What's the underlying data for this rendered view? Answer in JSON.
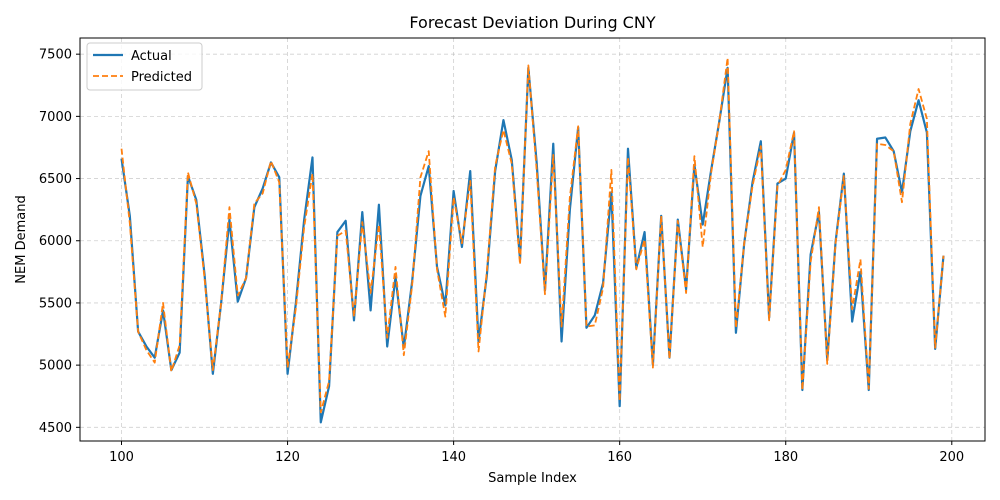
{
  "chart_data": {
    "type": "line",
    "title": "Forecast Deviation During CNY",
    "xlabel": "Sample Index",
    "ylabel": "NEM Demand",
    "xlim": [
      95,
      204
    ],
    "ylim": [
      4390,
      7630
    ],
    "xticks": [
      100,
      120,
      140,
      160,
      180,
      200
    ],
    "yticks": [
      4500,
      5000,
      5500,
      6000,
      6500,
      7000,
      7500
    ],
    "grid": true,
    "legend_position": "top-left",
    "x_start": 100,
    "series": [
      {
        "name": "Actual",
        "color": "#1f77b4",
        "style": "solid",
        "values": [
          6660,
          6200,
          5270,
          5150,
          5060,
          5440,
          4960,
          5100,
          6520,
          6330,
          5730,
          4930,
          5500,
          6170,
          5510,
          5700,
          6270,
          6420,
          6630,
          6510,
          4930,
          5500,
          6170,
          6670,
          4540,
          4830,
          6070,
          6160,
          5360,
          6230,
          5440,
          6290,
          5150,
          5710,
          5140,
          5670,
          6360,
          6600,
          5790,
          5480,
          6400,
          5950,
          6560,
          5190,
          5720,
          6560,
          6970,
          6650,
          5850,
          7390,
          6630,
          5600,
          6780,
          5190,
          6250,
          6910,
          5300,
          5400,
          5660,
          6390,
          4670,
          6740,
          5780,
          6070,
          5000,
          6200,
          5060,
          6170,
          5610,
          6610,
          6130,
          6560,
          6960,
          7390,
          5260,
          5980,
          6470,
          6800,
          5380,
          6460,
          6500,
          6870,
          4800,
          5890,
          6230,
          5040,
          5990,
          6540,
          5350,
          5750,
          4800,
          6820,
          6830,
          6720,
          6390,
          6880,
          7130,
          6870,
          5130,
          5880
        ]
      },
      {
        "name": "Predicted",
        "color": "#ff7f0e",
        "style": "dashed",
        "values": [
          6740,
          6140,
          5270,
          5120,
          5020,
          5500,
          4950,
          5160,
          6550,
          6300,
          5700,
          4960,
          5500,
          6270,
          5560,
          5700,
          6300,
          6380,
          6640,
          6470,
          4980,
          5460,
          6110,
          6540,
          4620,
          4870,
          6040,
          6080,
          5390,
          6150,
          5580,
          6130,
          5220,
          5790,
          5080,
          5640,
          6510,
          6720,
          5770,
          5390,
          6350,
          5980,
          6480,
          5110,
          5750,
          6600,
          6890,
          6620,
          5810,
          7410,
          6570,
          5570,
          6690,
          5310,
          6350,
          6920,
          5310,
          5320,
          5620,
          6570,
          4710,
          6670,
          5770,
          6010,
          4980,
          6200,
          5050,
          6160,
          5580,
          6680,
          5950,
          6540,
          6960,
          7470,
          5300,
          5980,
          6440,
          6760,
          5360,
          6440,
          6570,
          6880,
          4800,
          5830,
          6270,
          5010,
          5980,
          6520,
          5450,
          5850,
          4810,
          6780,
          6770,
          6720,
          6310,
          6940,
          7220,
          6980,
          5140,
          5880
        ]
      }
    ]
  }
}
